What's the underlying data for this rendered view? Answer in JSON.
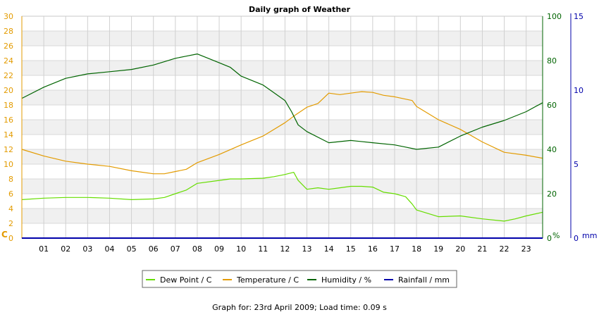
{
  "chart_data": {
    "type": "line",
    "title": "Daily graph of Weather",
    "grid": true,
    "legend_position": "bottom",
    "x": {
      "range": [
        0,
        23.75
      ],
      "ticks": [
        "01",
        "02",
        "03",
        "04",
        "05",
        "06",
        "07",
        "08",
        "09",
        "10",
        "11",
        "12",
        "13",
        "14",
        "15",
        "16",
        "17",
        "18",
        "19",
        "20",
        "21",
        "22",
        "23"
      ]
    },
    "axes": {
      "temp": {
        "unit": "C",
        "range": [
          0,
          30
        ],
        "ticks": [
          "0",
          "2",
          "4",
          "6",
          "8",
          "10",
          "12",
          "14",
          "16",
          "18",
          "20",
          "22",
          "24",
          "26",
          "28",
          "30"
        ],
        "color": "#e39b00"
      },
      "humidity": {
        "unit": "%",
        "range": [
          0,
          100
        ],
        "ticks": [
          "0",
          "20",
          "40",
          "60",
          "80",
          "100"
        ],
        "color": "#006400"
      },
      "rain": {
        "unit": "mm",
        "range": [
          0,
          15
        ],
        "ticks": [
          "0",
          "5",
          "10",
          "15"
        ],
        "color": "#0000aa"
      }
    },
    "series": [
      {
        "name": "Dew Point / C",
        "axis": "temp",
        "color": "#66dd00",
        "points": [
          [
            0,
            5.2
          ],
          [
            1,
            5.4
          ],
          [
            2,
            5.5
          ],
          [
            3,
            5.5
          ],
          [
            4,
            5.4
          ],
          [
            5,
            5.2
          ],
          [
            6,
            5.3
          ],
          [
            6.5,
            5.5
          ],
          [
            7,
            6.0
          ],
          [
            7.5,
            6.5
          ],
          [
            8,
            7.4
          ],
          [
            9,
            7.8
          ],
          [
            9.5,
            8.0
          ],
          [
            10,
            8.0
          ],
          [
            11,
            8.1
          ],
          [
            11.5,
            8.3
          ],
          [
            12,
            8.6
          ],
          [
            12.4,
            8.9
          ],
          [
            12.6,
            7.8
          ],
          [
            13,
            6.6
          ],
          [
            13.5,
            6.8
          ],
          [
            14,
            6.6
          ],
          [
            14.5,
            6.8
          ],
          [
            15,
            7.0
          ],
          [
            15.5,
            7.0
          ],
          [
            16,
            6.9
          ],
          [
            16.5,
            6.2
          ],
          [
            17,
            6.0
          ],
          [
            17.5,
            5.6
          ],
          [
            17.8,
            4.6
          ],
          [
            18,
            3.8
          ],
          [
            19,
            2.9
          ],
          [
            20,
            3.0
          ],
          [
            21,
            2.6
          ],
          [
            22,
            2.3
          ],
          [
            22.5,
            2.6
          ],
          [
            23,
            3.0
          ],
          [
            23.75,
            3.5
          ]
        ]
      },
      {
        "name": "Temperature / C",
        "axis": "temp",
        "color": "#e39b00",
        "points": [
          [
            0,
            12.0
          ],
          [
            1,
            11.1
          ],
          [
            2,
            10.4
          ],
          [
            3,
            10.0
          ],
          [
            4,
            9.7
          ],
          [
            5,
            9.1
          ],
          [
            6,
            8.7
          ],
          [
            6.5,
            8.7
          ],
          [
            7,
            9.0
          ],
          [
            7.5,
            9.3
          ],
          [
            8,
            10.2
          ],
          [
            9,
            11.3
          ],
          [
            10,
            12.6
          ],
          [
            11,
            13.8
          ],
          [
            12,
            15.6
          ],
          [
            12.5,
            16.7
          ],
          [
            13,
            17.7
          ],
          [
            13.5,
            18.2
          ],
          [
            14,
            19.6
          ],
          [
            14.5,
            19.4
          ],
          [
            15,
            19.6
          ],
          [
            15.5,
            19.8
          ],
          [
            16,
            19.7
          ],
          [
            16.5,
            19.3
          ],
          [
            17,
            19.1
          ],
          [
            17.8,
            18.6
          ],
          [
            18,
            17.8
          ],
          [
            19,
            16.0
          ],
          [
            20,
            14.7
          ],
          [
            21,
            13.0
          ],
          [
            22,
            11.6
          ],
          [
            23,
            11.2
          ],
          [
            23.75,
            10.8
          ]
        ]
      },
      {
        "name": "Humidity / %",
        "axis": "humidity",
        "color": "#006400",
        "points": [
          [
            0,
            63
          ],
          [
            1,
            68
          ],
          [
            2,
            72
          ],
          [
            3,
            74
          ],
          [
            4,
            75
          ],
          [
            5,
            76
          ],
          [
            6,
            78
          ],
          [
            7,
            81
          ],
          [
            7.5,
            82
          ],
          [
            8,
            83
          ],
          [
            8.5,
            81
          ],
          [
            9,
            79
          ],
          [
            9.5,
            77
          ],
          [
            10,
            73
          ],
          [
            11,
            69
          ],
          [
            12,
            62
          ],
          [
            12.3,
            57
          ],
          [
            12.6,
            51
          ],
          [
            13,
            48
          ],
          [
            14,
            43
          ],
          [
            15,
            44
          ],
          [
            16,
            43
          ],
          [
            17,
            42
          ],
          [
            17.5,
            41
          ],
          [
            18,
            40
          ],
          [
            19,
            41
          ],
          [
            20,
            46
          ],
          [
            21,
            50
          ],
          [
            22,
            53
          ],
          [
            23,
            57
          ],
          [
            23.75,
            61
          ]
        ]
      },
      {
        "name": "Rainfall / mm",
        "axis": "rain",
        "color": "#0000aa",
        "points": [
          [
            0,
            0
          ],
          [
            23.75,
            0
          ]
        ]
      }
    ]
  },
  "footer": "Graph for: 23rd April 2009; Load time: 0.09 s"
}
